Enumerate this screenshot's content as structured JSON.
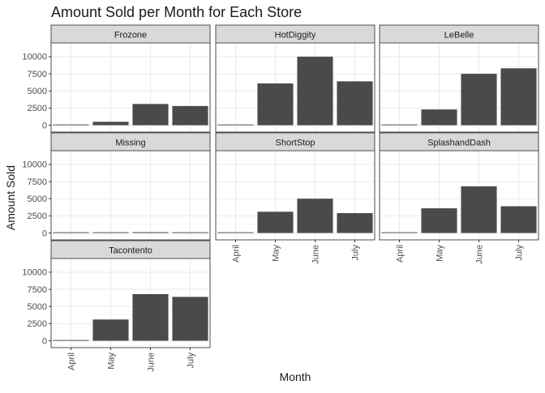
{
  "chart_data": {
    "type": "bar",
    "title": "Amount Sold per Month for Each Store",
    "xlabel": "Month",
    "ylabel": "Amount Sold",
    "categories": [
      "April",
      "May",
      "June",
      "July"
    ],
    "yticks": [
      0,
      2500,
      5000,
      7500,
      10000
    ],
    "ylim": [
      -1000,
      12000
    ],
    "grid": true,
    "facet_layout": "3 columns, free x scales (bottom facet of each column shows the month labels)",
    "colors": {
      "bar": "#4a4a4a",
      "strip_fill": "#d9d9d9",
      "panel_border": "#4d4d4d",
      "grid_major": "#ebebeb",
      "grid_minor": "#f5f5f5",
      "text": "#1a1a1a",
      "tick_text": "#4d4d4d"
    },
    "series": [
      {
        "name": "Frozone",
        "values": [
          0,
          500,
          3100,
          2800
        ]
      },
      {
        "name": "HotDiggity",
        "values": [
          0,
          6100,
          10000,
          6400
        ]
      },
      {
        "name": "LeBelle",
        "values": [
          0,
          2300,
          7500,
          8300
        ]
      },
      {
        "name": "Missing",
        "values": [
          0,
          0,
          100,
          0
        ]
      },
      {
        "name": "ShortStop",
        "values": [
          0,
          3100,
          5000,
          2900
        ]
      },
      {
        "name": "SplashandDash",
        "values": [
          0,
          3600,
          6800,
          3900
        ]
      },
      {
        "name": "Tacontento",
        "values": [
          0,
          3100,
          6800,
          6400
        ]
      }
    ]
  }
}
